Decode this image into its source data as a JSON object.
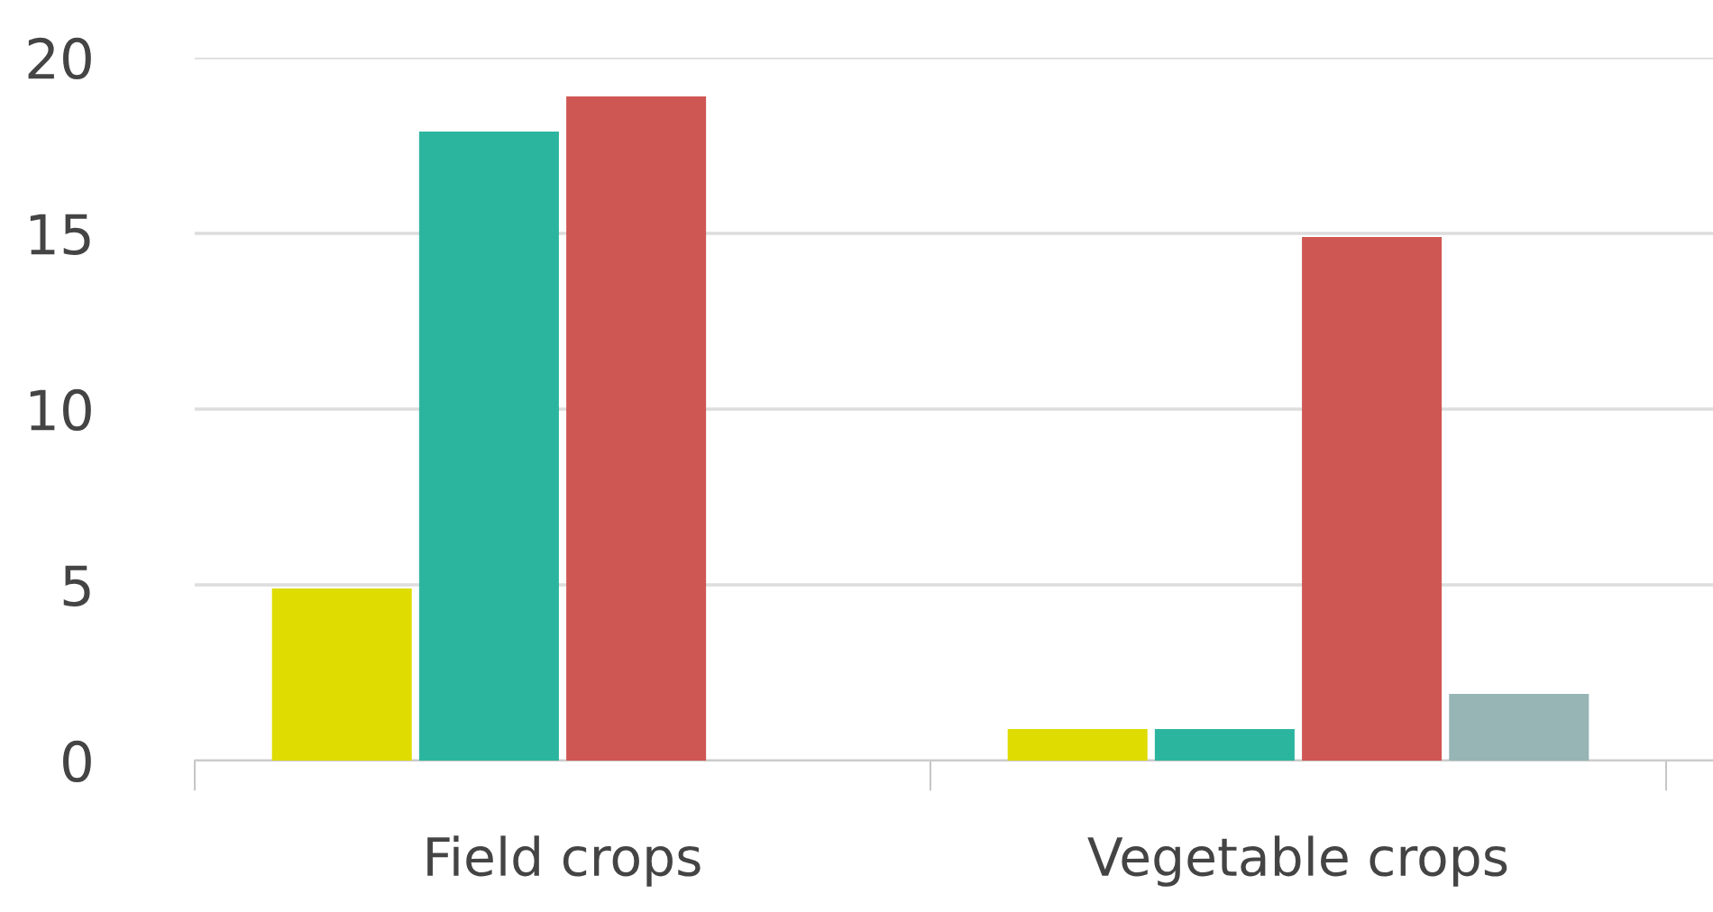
{
  "chart_data": {
    "type": "bar",
    "categories": [
      "Field crops",
      "Vegetable crops"
    ],
    "series": [
      {
        "color": "#dedc00",
        "values": [
          4.9,
          0.9
        ]
      },
      {
        "color": "#2cb59e",
        "values": [
          17.9,
          0.9
        ]
      },
      {
        "color": "#cf5753",
        "values": [
          18.9,
          14.9
        ]
      },
      {
        "color": "#96b5b4",
        "values": [
          null,
          1.9
        ]
      }
    ],
    "ylim": [
      0,
      20
    ],
    "yticks": [
      0,
      5,
      10,
      15,
      20
    ],
    "grid": "y",
    "legend": false
  }
}
